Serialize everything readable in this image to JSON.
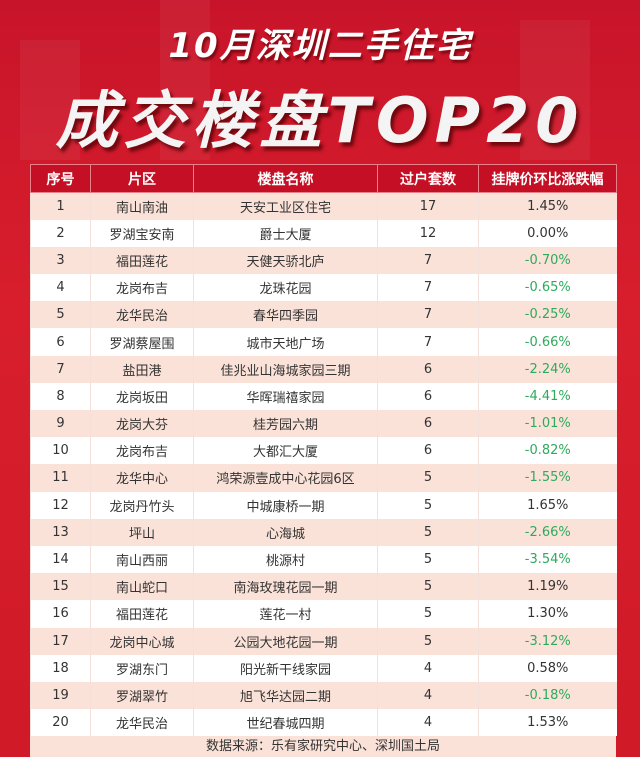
{
  "header": {
    "line1": "10月深圳二手住宅",
    "line2": "成交楼盘TOP20"
  },
  "table": {
    "columns": [
      "序号",
      "片区",
      "楼盘名称",
      "过户套数",
      "挂牌价环比涨跌幅"
    ],
    "rows": [
      [
        "1",
        "南山南油",
        "天安工业区住宅",
        "17",
        "1.45%"
      ],
      [
        "2",
        "罗湖宝安南",
        "爵士大厦",
        "12",
        "0.00%"
      ],
      [
        "3",
        "福田莲花",
        "天健天骄北庐",
        "7",
        "-0.70%"
      ],
      [
        "4",
        "龙岗布吉",
        "龙珠花园",
        "7",
        "-0.65%"
      ],
      [
        "5",
        "龙华民治",
        "春华四季园",
        "7",
        "-0.25%"
      ],
      [
        "6",
        "罗湖蔡屋围",
        "城市天地广场",
        "7",
        "-0.66%"
      ],
      [
        "7",
        "盐田港",
        "佳兆业山海城家园三期",
        "6",
        "-2.24%"
      ],
      [
        "8",
        "龙岗坂田",
        "华晖瑞禧家园",
        "6",
        "-4.41%"
      ],
      [
        "9",
        "龙岗大芬",
        "桂芳园六期",
        "6",
        "-1.01%"
      ],
      [
        "10",
        "龙岗布吉",
        "大都汇大厦",
        "6",
        "-0.82%"
      ],
      [
        "11",
        "龙华中心",
        "鸿荣源壹成中心花园6区",
        "5",
        "-1.55%"
      ],
      [
        "12",
        "龙岗丹竹头",
        "中城康桥一期",
        "5",
        "1.65%"
      ],
      [
        "13",
        "坪山",
        "心海城",
        "5",
        "-2.66%"
      ],
      [
        "14",
        "南山西丽",
        "桃源村",
        "5",
        "-3.54%"
      ],
      [
        "15",
        "南山蛇口",
        "南海玫瑰花园一期",
        "5",
        "1.19%"
      ],
      [
        "16",
        "福田莲花",
        "莲花一村",
        "5",
        "1.30%"
      ],
      [
        "17",
        "龙岗中心城",
        "公园大地花园一期",
        "5",
        "-3.12%"
      ],
      [
        "18",
        "罗湖东门",
        "阳光新干线家园",
        "4",
        "0.58%"
      ],
      [
        "19",
        "罗湖翠竹",
        "旭飞华达园二期",
        "4",
        "-0.18%"
      ],
      [
        "20",
        "龙华民治",
        "世纪春城四期",
        "4",
        "1.53%"
      ]
    ]
  },
  "footer": {
    "source": "数据来源：乐有家研究中心、深圳国土局"
  },
  "watermark": "乐有家",
  "colors": {
    "background": "#d01a28",
    "header": "#c40f24",
    "band": "#fbe2d8",
    "negative": "#2eaa5c"
  }
}
